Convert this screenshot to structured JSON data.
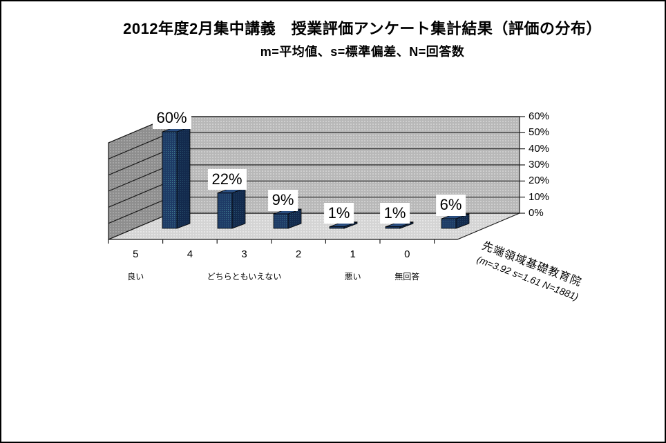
{
  "title": {
    "line1": "2012年度2月集中講義　授業評価アンケート集計結果（評価の分布）",
    "line2": "m=平均値、s=標準偏差、N=回答数"
  },
  "chart_data": {
    "type": "bar",
    "projection": "3d",
    "title": "2012年度2月集中講義　授業評価アンケート集計結果（評価の分布）",
    "subtitle": "m=平均値、s=標準偏差、N=回答数",
    "categories": [
      "5",
      "4",
      "3",
      "2",
      "1",
      "0"
    ],
    "values": [
      60,
      22,
      9,
      1,
      1,
      6
    ],
    "data_labels": [
      "60%",
      "22%",
      "9%",
      "1%",
      "1%",
      "6%"
    ],
    "category_group_labels": [
      {
        "label": "良い",
        "category_index": 0
      },
      {
        "label": "どちらともいえない",
        "category_index": 2
      },
      {
        "label": "悪い",
        "category_index": 4
      },
      {
        "label": "無回答",
        "category_index": 5
      }
    ],
    "y_axis": {
      "side": "right",
      "min": 0,
      "max": 60,
      "tick_labels": [
        "60%",
        "50%",
        "40%",
        "30%",
        "20%",
        "10%",
        "0%"
      ]
    },
    "series_label": {
      "line1": "先端領域基礎教育院",
      "line2": "(m=3.92 s=1.61 N=1881)"
    },
    "legend": "none",
    "grid": true,
    "colors": {
      "bar_front": "#1e3a66",
      "bar_front_dot": "#3e7f8f",
      "bar_side": "#132a4d",
      "bar_side_dot": "#2a5670",
      "bar_top": "#2a4e80",
      "back_wall": "#b8b8b8",
      "back_wall_dot": "#e9e9e9",
      "side_wall": "#8e8e8e",
      "side_wall_dot": "#c9c9c9",
      "floor": "#d4d4d4",
      "floor_dot": "#f3f3f3",
      "gridline": "#1c1c1c",
      "data_label_bg": "#ffffff",
      "text": "#000000"
    }
  }
}
